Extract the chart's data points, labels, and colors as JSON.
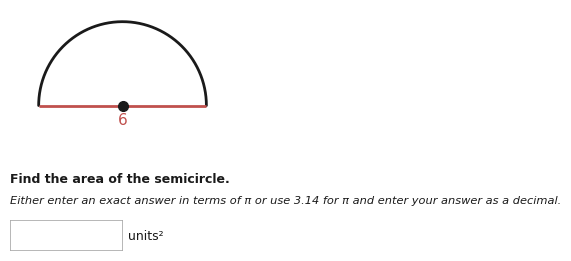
{
  "diameter_label": "6",
  "diameter_label_color": "#c0504d",
  "diameter_line_color": "#c0504d",
  "semicircle_arc_color": "#1a1a1a",
  "dot_color": "#1a1a1a",
  "bold_text": "Find the area of the semicircle.",
  "italic_text": "Either enter an exact answer in terms of π or use 3.14 for π and enter your answer as a decimal.",
  "units_label": "units²",
  "background_color": "#ffffff",
  "fig_width": 6.43,
  "fig_height": 3.1,
  "arc_linewidth": 2.0,
  "diameter_linewidth": 2.0,
  "dot_markersize": 7
}
